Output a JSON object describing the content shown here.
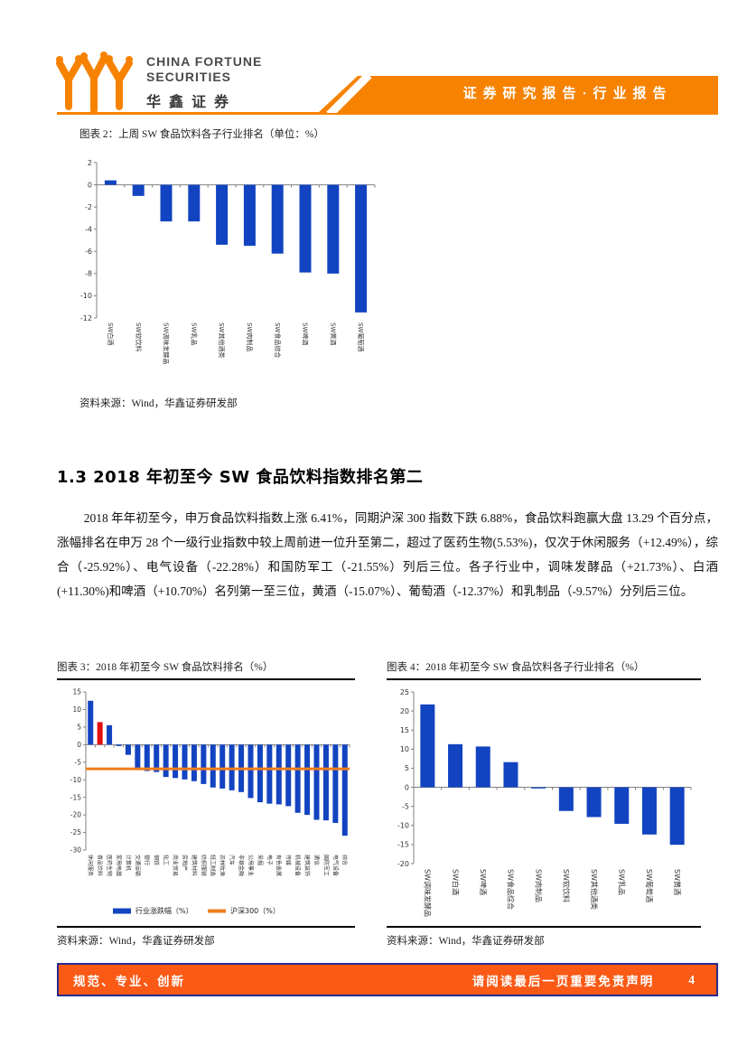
{
  "theme": {
    "header_orange": "#f78200",
    "footer_orange": "#fa5a15",
    "footer_border_navy": "#2b2b8c",
    "bar_blue": "#1243c0",
    "highlight_red": "#e01010",
    "line_orange": "#f07d1c",
    "axis_gray": "#808080"
  },
  "header": {
    "logo_line1": "CHINA FORTUNE",
    "logo_line2": "SECURITIES",
    "logo_cn": "华鑫证券",
    "banner": "证券研究报告·行业报告"
  },
  "section_heading": "1.3 2018 年初至今 SW 食品饮料指数排名第二",
  "paragraph": "2018 年年初至今，申万食品饮料指数上涨 6.41%，同期沪深 300 指数下跌 6.88%，食品饮料跑赢大盘 13.29 个百分点，涨幅排名在申万 28 个一级行业指数中较上周前进一位升至第二，超过了医药生物(5.53%)，仅次于休闲服务（+12.49%），综合（-25.92%）、电气设备（-22.28%）和国防军工（-21.55%）列后三位。各子行业中，调味发酵品（+21.73%）、白酒(+11.30%)和啤酒（+10.70%）名列第一至三位，黄酒（-15.07%）、葡萄酒（-12.37%）和乳制品（-9.57%）分列后三位。",
  "figures": [
    {
      "caption": "图表 2：上周 SW 食品饮料各子行业排名（单位：%）",
      "source": "资料来源：Wind，华鑫证券研发部"
    },
    {
      "caption": "图表 3：2018 年初至今 SW 食品饮料排名（%）",
      "source": "资料来源：Wind，华鑫证券研发部"
    },
    {
      "caption": "图表 4：2018 年初至今 SW 食品饮料各子行业排名（%）",
      "source": "资料来源：Wind，华鑫证券研发部"
    }
  ],
  "footer": {
    "left": "规范、专业、创新",
    "right": "请阅读最后一页重要免责声明",
    "page": "4"
  },
  "chart_data": [
    {
      "id": "chart2",
      "type": "bar",
      "title": "上周SW食品饮料各子行业排名（单位：%）",
      "categories": [
        "SW白酒",
        "SW软饮料",
        "SW调味发酵品",
        "SW乳品",
        "SW其他酒类",
        "SW肉制品",
        "SW食品综合",
        "SW啤酒",
        "SW黄酒",
        "SW葡萄酒"
      ],
      "values": [
        0.4,
        -1.0,
        -3.3,
        -3.3,
        -5.4,
        -5.5,
        -6.2,
        -7.9,
        -8.0,
        -11.5
      ],
      "ylim": [
        -12,
        2
      ],
      "ytick_step": 2,
      "bar_color": "#1243c0",
      "axis_color": "#808080",
      "grid": false,
      "legend_position": "none"
    },
    {
      "id": "chart3",
      "type": "bar",
      "title": "2018年初至今SW食品饮料排名（%）",
      "categories": [
        "休闲服务",
        "食品饮料",
        "医药生物",
        "家用电器",
        "计算机",
        "交通运输",
        "银行",
        "钢铁",
        "化工",
        "商业贸易",
        "房地产",
        "建筑材料",
        "纺织服装",
        "轻工制造",
        "农林牧渔",
        "汽车",
        "非银金融",
        "公用事业",
        "采掘",
        "电子",
        "有色金属",
        "传媒",
        "机械设备",
        "建筑装饰",
        "通信",
        "国防军工",
        "电气设备",
        "综合"
      ],
      "values": [
        12.49,
        6.41,
        5.53,
        -0.4,
        -2.9,
        -7.1,
        -7.5,
        -7.8,
        -9.2,
        -9.5,
        -9.9,
        -10.4,
        -11.2,
        -12.2,
        -12.5,
        -13.0,
        -13.5,
        -15.2,
        -16.4,
        -16.8,
        -17.0,
        -17.5,
        -19.4,
        -20.0,
        -21.4,
        -21.55,
        -22.28,
        -25.92
      ],
      "ylim": [
        -30,
        15
      ],
      "ytick_step": 5,
      "bar_color": "#1243c0",
      "highlight_index": 1,
      "highlight_color": "#e01010",
      "reference_line": {
        "label": "沪深300（%）",
        "value": -6.88,
        "color": "#f07d1c"
      },
      "legend": [
        {
          "label": "行业涨跌幅（%）",
          "color": "#1243c0",
          "type": "bar"
        },
        {
          "label": "沪深300（%）",
          "color": "#f07d1c",
          "type": "line"
        }
      ],
      "axis_color": "#808080",
      "grid": false,
      "legend_position": "bottom"
    },
    {
      "id": "chart4",
      "type": "bar",
      "title": "2018年初至今SW食品饮料各子行业排名（%）",
      "categories": [
        "SW调味发酵品",
        "SW白酒",
        "SW啤酒",
        "SW食品综合",
        "SW肉制品",
        "SW软饮料",
        "SW其他酒类",
        "SW乳品",
        "SW葡萄酒",
        "SW黄酒"
      ],
      "values": [
        21.73,
        11.3,
        10.7,
        6.6,
        -0.3,
        -6.2,
        -7.8,
        -9.57,
        -12.37,
        -15.07
      ],
      "ylim": [
        -20,
        25
      ],
      "ytick_step": 5,
      "bar_color": "#1243c0",
      "axis_color": "#808080",
      "grid": false,
      "legend_position": "none"
    }
  ]
}
